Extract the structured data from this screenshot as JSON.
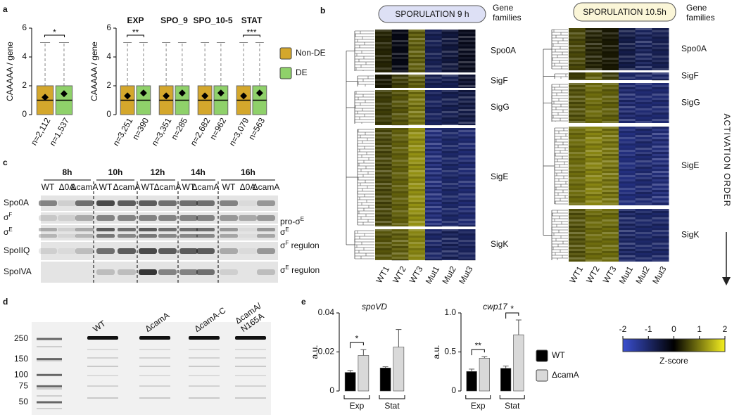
{
  "panel_labels": [
    "a",
    "b",
    "c",
    "d",
    "e"
  ],
  "chart_data": [
    {
      "type": "box",
      "ylabel": "CAAAAA / gene",
      "ylim": [
        0,
        6
      ],
      "yticks": [
        0,
        2,
        4,
        6
      ],
      "categories": [
        null
      ],
      "annotations": [
        "*"
      ],
      "series": [
        {
          "color": "#d4a72c",
          "min": [
            0
          ],
          "q1": [
            0
          ],
          "median": [
            1
          ],
          "q3": [
            2
          ],
          "max": [
            5
          ],
          "mean": [
            1.2
          ],
          "n_labels": [
            "n=2,112"
          ]
        },
        {
          "color": "#8fd16a",
          "min": [
            0
          ],
          "q1": [
            0
          ],
          "median": [
            1
          ],
          "q3": [
            2
          ],
          "max": [
            5
          ],
          "mean": [
            1.45
          ],
          "n_labels": [
            "n=1,537"
          ]
        }
      ]
    },
    {
      "type": "box",
      "ylabel": "CAAAAA / gene",
      "ylim": [
        0,
        6
      ],
      "yticks": [
        0,
        2,
        4,
        6
      ],
      "categories": [
        "EXP",
        "SPO_9",
        "SPO_10-5",
        "STAT"
      ],
      "annotations": [
        "**",
        null,
        null,
        "***"
      ],
      "legend": "right",
      "series": [
        {
          "name": "Non-DE",
          "color": "#d4a72c",
          "min": [
            0,
            0,
            0,
            0
          ],
          "q1": [
            0,
            0,
            0,
            0
          ],
          "median": [
            1,
            1,
            1,
            1
          ],
          "q3": [
            2,
            2,
            2,
            2
          ],
          "max": [
            5,
            5,
            5,
            5
          ],
          "mean": [
            1.3,
            1.3,
            1.3,
            1.3
          ],
          "n_labels": [
            "n=3,251",
            "n=3,351",
            "n=2,682",
            "n=3,079"
          ]
        },
        {
          "name": "DE",
          "color": "#8fd16a",
          "min": [
            0,
            0,
            0,
            0
          ],
          "q1": [
            0,
            0,
            0,
            0
          ],
          "median": [
            1,
            1,
            1,
            1
          ],
          "q3": [
            2,
            2,
            2,
            2
          ],
          "max": [
            5,
            5,
            5,
            5
          ],
          "mean": [
            1.5,
            1.5,
            1.5,
            1.5
          ],
          "n_labels": [
            "n=390",
            "n=285",
            "n=962",
            "n=563"
          ]
        }
      ]
    },
    {
      "type": "heatmap",
      "title": "SPORULATION 9 h",
      "header": [
        "Gene",
        "families"
      ],
      "columns": [
        "WT1",
        "WT2",
        "WT3",
        "Mut1",
        "Mut2",
        "Mut3"
      ],
      "rows": [
        "Spo0A",
        "SigF",
        "SigG",
        "SigE",
        "SigK"
      ],
      "values": [
        [
          0.3,
          -0.2,
          0.8,
          -0.8,
          -0.6,
          -0.3
        ],
        [
          0.2,
          0.5,
          0.8,
          -0.8,
          -0.8,
          -0.5
        ],
        [
          0.5,
          0.7,
          1.0,
          -0.9,
          -0.8,
          -0.7
        ],
        [
          0.6,
          0.8,
          1.2,
          -1.2,
          -1.0,
          -1.1
        ],
        [
          0.7,
          0.8,
          1.1,
          -1.0,
          -0.9,
          -0.9
        ]
      ]
    },
    {
      "type": "heatmap",
      "title": "SPORULATION 10.5h",
      "header": [
        "Gene",
        "families"
      ],
      "columns": [
        "WT1",
        "WT2",
        "WT3",
        "Mut1",
        "Mut2",
        "Mut3"
      ],
      "rows": [
        "Spo0A",
        "SigF",
        "SigG",
        "SigE",
        "SigK"
      ],
      "values": [
        [
          0.6,
          0.3,
          0.2,
          -0.7,
          -0.9,
          -0.8
        ],
        [
          0.5,
          0.8,
          0.5,
          -1.0,
          -1.0,
          -1.0
        ],
        [
          0.7,
          0.9,
          0.8,
          -1.1,
          -1.1,
          -1.1
        ],
        [
          0.9,
          1.1,
          1.0,
          -1.2,
          -1.1,
          -1.2
        ],
        [
          0.7,
          0.9,
          0.9,
          -1.0,
          -1.0,
          -1.0
        ]
      ]
    },
    {
      "type": "bar",
      "title": "spoVD",
      "ylabel": "a.u.",
      "ylim": [
        0,
        0.04
      ],
      "yticks": [
        0,
        0.02,
        0.04
      ],
      "categories": [
        "Exp",
        "Stat"
      ],
      "annotations": [
        "*",
        null
      ],
      "series": [
        {
          "color": "#000000",
          "values": [
            0.0095,
            0.0118
          ],
          "errors": [
            0.001,
            0.0006
          ]
        },
        {
          "color": "#d9d9d9",
          "values": [
            0.0182,
            0.0225
          ],
          "errors": [
            0.003,
            0.009
          ]
        }
      ]
    },
    {
      "type": "bar",
      "title": "cwp17",
      "ylabel": "a.u.",
      "ylim": [
        0,
        1
      ],
      "yticks": [
        0,
        0.5,
        {
          "value": 1,
          "label": "1.0"
        }
      ],
      "categories": [
        "Exp",
        "Stat"
      ],
      "annotations": [
        "**",
        "*"
      ],
      "legend": "right",
      "series": [
        {
          "name": "WT",
          "color": "#000000",
          "values": [
            0.25,
            0.29
          ],
          "errors": [
            0.03,
            0.03
          ]
        },
        {
          "name": "ΔcamA",
          "color": "#d9d9d9",
          "values": [
            0.42,
            0.72
          ],
          "errors": [
            0.02,
            0.19
          ]
        }
      ]
    }
  ],
  "colorbar": {
    "lim": [
      -2,
      2
    ],
    "ticks": [
      -2,
      -1,
      0,
      1,
      2
    ],
    "label": "Z-score",
    "colors": [
      "#3a4fd0",
      "#000000",
      "#f5f020"
    ]
  },
  "activation_order": "ACTIVATION ORDER",
  "blot": {
    "time_points": [
      "8h",
      "10h",
      "12h",
      "14h",
      "16h"
    ],
    "lanes": [
      "WT",
      "Δ0A",
      "ΔcamA",
      "WT",
      "ΔcamA",
      "WT",
      "ΔcamA",
      "WT",
      "ΔcamA",
      "WT",
      "Δ0A",
      "ΔcamA"
    ],
    "rows": [
      {
        "base": "Spo0A"
      },
      {
        "base": "σ",
        "sup": "F"
      },
      {
        "base": "σ",
        "sup": "E"
      },
      {
        "base": "SpoIIQ"
      },
      {
        "base": "SpoIVA"
      }
    ],
    "right_labels": [
      {
        "base": "pro-σ",
        "sup": "E"
      },
      {
        "base": "σ",
        "sup": "E"
      },
      {
        "base": "σ",
        "sup": "F",
        "tail": " regulon"
      },
      {
        "base": "σ",
        "sup": "E",
        "tail": " regulon"
      }
    ]
  },
  "gel": {
    "ladder": [
      250,
      150,
      100,
      75,
      50
    ],
    "lanes": [
      [
        "WT"
      ],
      [
        "ΔcamA"
      ],
      [
        "ΔcamA-C"
      ],
      [
        "ΔcamA/",
        "N165A"
      ]
    ]
  }
}
